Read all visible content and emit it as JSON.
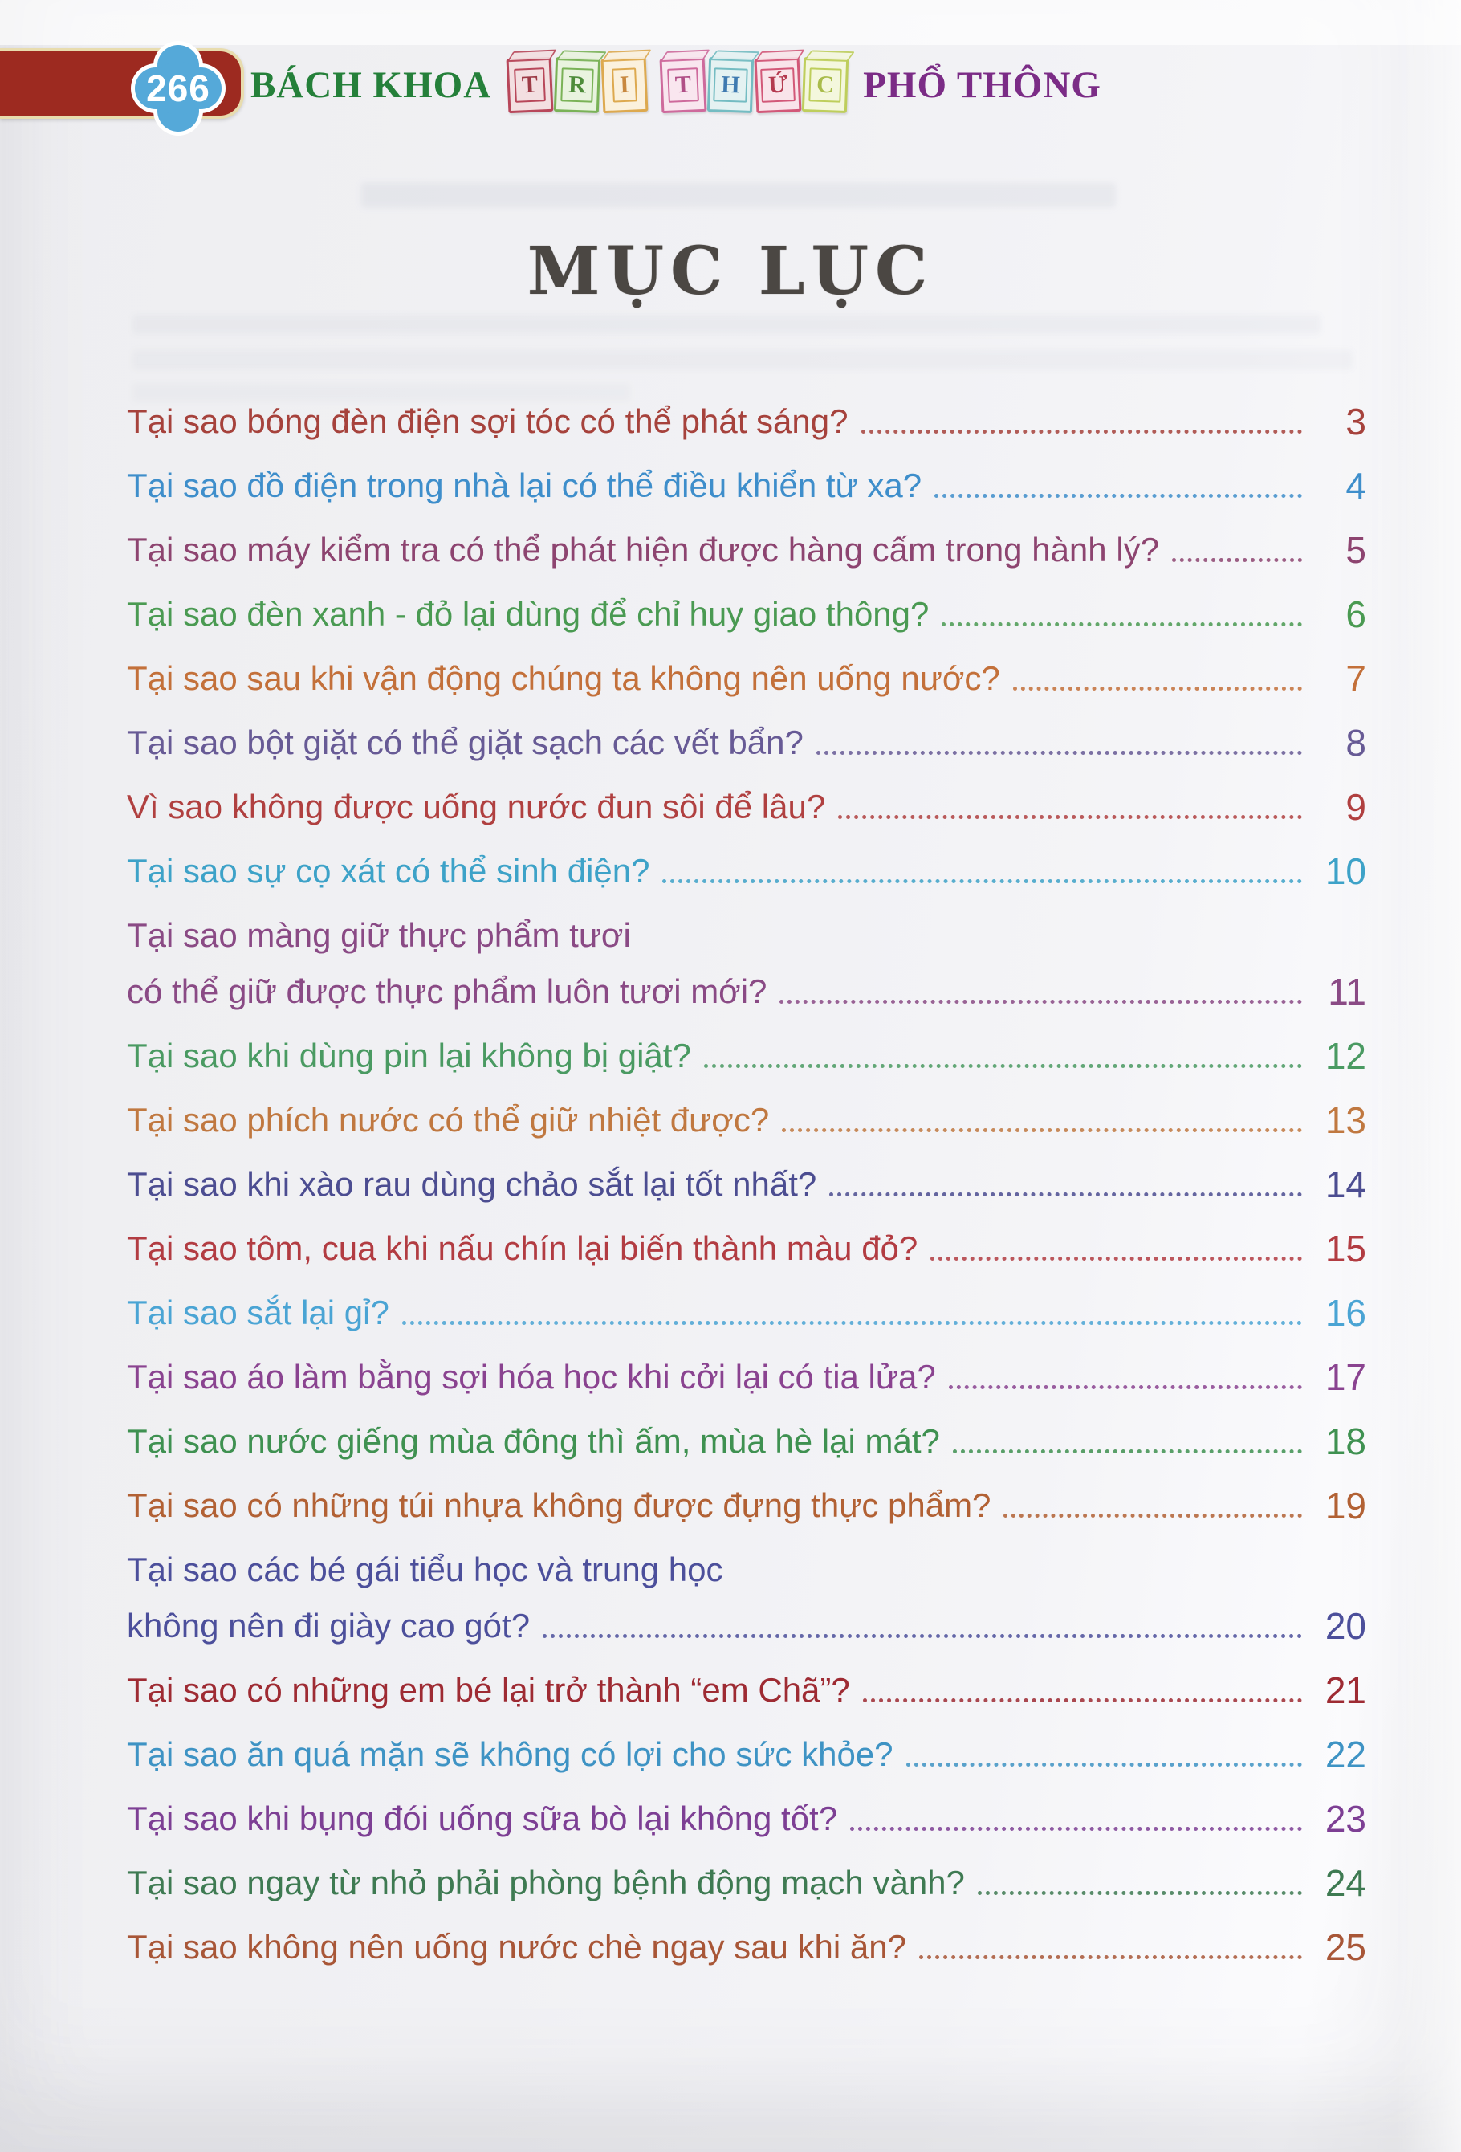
{
  "header": {
    "page_badge": "266",
    "brand_part1": "BÁCH KHOA",
    "brand_blocks": [
      {
        "letter": "T",
        "face": "#f3dfe1",
        "edge": "#b8475a",
        "text": "#9d3a46"
      },
      {
        "letter": "R",
        "face": "#e9f3df",
        "edge": "#7ab257",
        "text": "#4e8c3a"
      },
      {
        "letter": "I",
        "face": "#fbf1dd",
        "edge": "#dda94f",
        "text": "#c8883f"
      },
      {
        "letter": "T",
        "face": "#f9e6ef",
        "edge": "#ce6a9c",
        "text": "#b04f86"
      },
      {
        "letter": "H",
        "face": "#e4f2f2",
        "edge": "#74bcc2",
        "text": "#3f7ab0"
      },
      {
        "letter": "Ứ",
        "face": "#f9e4ea",
        "edge": "#d25878",
        "text": "#b43a50"
      },
      {
        "letter": "C",
        "face": "#f4f7dd",
        "edge": "#bece5c",
        "text": "#a9bc4b"
      }
    ],
    "brand_part2": "PHỔ THÔNG",
    "badge_color": "#55a9d9",
    "bar_color": "#9d2a20"
  },
  "title": "MỤC LỤC",
  "toc": {
    "entries": [
      {
        "lines": [
          "Tại sao bóng đèn điện sợi tóc có thể phát sáng?"
        ],
        "page": "3",
        "color": "#a6423c"
      },
      {
        "lines": [
          "Tại sao đồ điện trong nhà lại có thể điều khiển từ xa?"
        ],
        "page": "4",
        "color": "#3e8ecb"
      },
      {
        "lines": [
          "Tại sao máy kiểm tra có thể phát hiện được hàng cấm trong hành lý?"
        ],
        "page": "5",
        "color": "#8d4470"
      },
      {
        "lines": [
          "Tại sao đèn xanh - đỏ lại dùng để chỉ huy giao thông?"
        ],
        "page": "6",
        "color": "#4a9a52"
      },
      {
        "lines": [
          "Tại sao sau khi vận động chúng ta không nên uống nước?"
        ],
        "page": "7",
        "color": "#c3703a"
      },
      {
        "lines": [
          "Tại sao bột giặt có thể giặt sạch các vết bẩn?"
        ],
        "page": "8",
        "color": "#675a95"
      },
      {
        "lines": [
          "Vì sao không được uống nước đun sôi để lâu?"
        ],
        "page": "9",
        "color": "#b04040"
      },
      {
        "lines": [
          "Tại sao sự cọ xát có thể sinh điện?"
        ],
        "page": "10",
        "color": "#3da2c8"
      },
      {
        "lines": [
          "Tại sao màng giữ thực phẩm tươi",
          "có thể giữ được thực phẩm luôn tươi mới?"
        ],
        "page": "11",
        "color": "#8a4a85"
      },
      {
        "lines": [
          "Tại sao khi dùng pin lại không bị giật?"
        ],
        "page": "12",
        "color": "#4a9a62"
      },
      {
        "lines": [
          "Tại sao phích nước có thể giữ nhiệt được?"
        ],
        "page": "13",
        "color": "#c07840"
      },
      {
        "lines": [
          "Tại sao khi xào rau dùng chảo sắt lại tốt nhất?"
        ],
        "page": "14",
        "color": "#4c4d91"
      },
      {
        "lines": [
          "Tại sao tôm, cua khi nấu chín lại biến thành màu đỏ?"
        ],
        "page": "15",
        "color": "#b23c42"
      },
      {
        "lines": [
          "Tại sao sắt lại gỉ?"
        ],
        "page": "16",
        "color": "#4aa4d4"
      },
      {
        "lines": [
          "Tại sao áo làm bằng sợi hóa học khi cởi lại có tia lửa?"
        ],
        "page": "17",
        "color": "#8a4390"
      },
      {
        "lines": [
          "Tại sao nước giếng mùa đông thì ấm, mùa hè lại mát?"
        ],
        "page": "18",
        "color": "#3f9151"
      },
      {
        "lines": [
          "Tại sao có những túi nhựa không được đựng thực phẩm?"
        ],
        "page": "19",
        "color": "#b26134"
      },
      {
        "lines": [
          "Tại sao các bé gái tiểu học và trung học",
          "không nên đi giày cao gót?"
        ],
        "page": "20",
        "color": "#4c4f9b"
      },
      {
        "lines": [
          "Tại sao có những em bé lại trở thành “em Chã”?"
        ],
        "page": "21",
        "color": "#9e2b33"
      },
      {
        "lines": [
          "Tại sao ăn quá mặn sẽ không có lợi cho sức khỏe?"
        ],
        "page": "22",
        "color": "#3e93c4"
      },
      {
        "lines": [
          "Tại sao khi bụng đói uống sữa bò lại không tốt?"
        ],
        "page": "23",
        "color": "#7d3f94"
      },
      {
        "lines": [
          "Tại sao ngay từ nhỏ phải phòng bệnh động mạch vành?"
        ],
        "page": "24",
        "color": "#3e7a52"
      },
      {
        "lines": [
          "Tại sao không nên uống nước chè ngay sau khi ăn?"
        ],
        "page": "25",
        "color": "#a85637"
      }
    ]
  }
}
